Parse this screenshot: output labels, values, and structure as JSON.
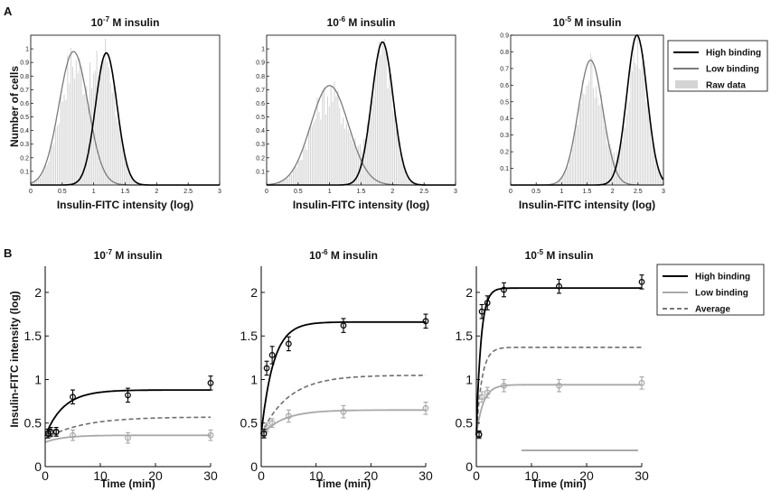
{
  "panels": {
    "a": "A",
    "b": "B"
  },
  "chart_data": [
    {
      "id": "A1",
      "type": "histogram",
      "title_prefix": "10",
      "title_exp": "-7",
      "title_suffix": " M insulin",
      "xlabel": "Insulin-FITC intensity  (log)",
      "ylabel": "Number of cells",
      "xlim": [
        0,
        3
      ],
      "ylim": [
        0,
        1.1
      ],
      "xticks": [
        0,
        0.5,
        1,
        1.5,
        2,
        2.5,
        3
      ],
      "xtick_labels": [
        "0",
        "0.5",
        "1",
        "1.5",
        "2",
        "2.5",
        "3"
      ],
      "yticks": [
        0.1,
        0.2,
        0.3,
        0.4,
        0.5,
        0.6,
        0.7,
        0.8,
        0.9,
        1
      ],
      "ytick_labels": [
        "0.1",
        "0.2",
        "0.3",
        "0.4",
        "0.5",
        "0.6",
        "0.7",
        "0.8",
        "0.9",
        "1"
      ],
      "high": {
        "mu": 1.2,
        "sigma": 0.17,
        "amp": 0.97
      },
      "low": {
        "mu": 0.68,
        "sigma": 0.23,
        "amp": 0.98
      }
    },
    {
      "id": "A2",
      "type": "histogram",
      "title_prefix": "10",
      "title_exp": "-6",
      "title_suffix": " M insulin",
      "xlabel": "Insulin-FITC intensity  (log)",
      "ylabel": "",
      "xlim": [
        0,
        3
      ],
      "ylim": [
        0,
        1.1
      ],
      "xticks": [
        0,
        0.5,
        1,
        1.5,
        2,
        2.5,
        3
      ],
      "xtick_labels": [
        "0",
        "0.5",
        "1",
        "1.5",
        "2",
        "2.5",
        "3"
      ],
      "yticks": [
        0.1,
        0.2,
        0.3,
        0.4,
        0.5,
        0.6,
        0.7,
        0.8,
        0.9,
        1
      ],
      "ytick_labels": [
        "0.1",
        "0.2",
        "0.3",
        "0.4",
        "0.5",
        "0.6",
        "0.7",
        "0.8",
        "0.9",
        "1"
      ],
      "high": {
        "mu": 1.84,
        "sigma": 0.17,
        "amp": 1.05
      },
      "low": {
        "mu": 1.0,
        "sigma": 0.3,
        "amp": 0.73
      }
    },
    {
      "id": "A3",
      "type": "histogram",
      "title_prefix": "10",
      "title_exp": "-5",
      "title_suffix": " M  insulin",
      "xlabel": "Insulin-FITC intensity  (log)",
      "ylabel": "",
      "xlim": [
        0,
        3
      ],
      "ylim": [
        0,
        0.9
      ],
      "xticks": [
        0,
        0.5,
        1,
        1.5,
        2,
        2.5,
        3
      ],
      "xtick_labels": [
        "0",
        "0.5",
        "1",
        "1.5",
        "2",
        "2.5",
        "3"
      ],
      "yticks": [
        0.1,
        0.2,
        0.3,
        0.4,
        0.5,
        0.6,
        0.7,
        0.8,
        0.9
      ],
      "ytick_labels": [
        "0.1",
        "0.2",
        "0.3",
        "0.4",
        "0.5",
        "0.6",
        "0.7",
        "0.8",
        "0.9"
      ],
      "high": {
        "mu": 2.48,
        "sigma": 0.2,
        "amp": 0.9
      },
      "low": {
        "mu": 1.57,
        "sigma": 0.24,
        "amp": 0.75
      }
    },
    {
      "id": "B1",
      "type": "line",
      "title_prefix": "10",
      "title_exp": "-7",
      "title_suffix": " M insulin",
      "xlabel": "Time  (min)",
      "ylabel": "Insulin-FITC intensity (log)",
      "xlim": [
        0,
        30
      ],
      "ylim": [
        0,
        2.3
      ],
      "xticks": [
        0,
        10,
        20,
        30
      ],
      "xtick_labels": [
        "0",
        "10",
        "20",
        "30"
      ],
      "yticks": [
        0,
        0.5,
        1,
        1.5,
        2
      ],
      "ytick_labels": [
        "0",
        "0.5",
        "1",
        "1.5",
        "2"
      ],
      "high": {
        "t": [
          0.5,
          1,
          2,
          5,
          15,
          30
        ],
        "y": [
          0.38,
          0.4,
          0.4,
          0.8,
          0.82,
          0.96
        ],
        "err": [
          0.05,
          0.05,
          0.05,
          0.08,
          0.08,
          0.08
        ],
        "fit_y0": 0.35,
        "fit_ymax": 0.88,
        "fit_k": 0.3
      },
      "low": {
        "t": [
          0.5,
          1,
          2,
          5,
          15,
          30
        ],
        "y": [
          0.37,
          0.38,
          0.39,
          0.36,
          0.33,
          0.36
        ],
        "err": [
          0.04,
          0.04,
          0.04,
          0.06,
          0.06,
          0.06
        ],
        "fit_y0": 0.28,
        "fit_ymax": 0.36,
        "fit_k": 0.3
      },
      "average": {
        "fit_y0": 0.32,
        "fit_ymax": 0.57,
        "fit_k": 0.15
      }
    },
    {
      "id": "B2",
      "type": "line",
      "title_prefix": "10",
      "title_exp": "-6",
      "title_suffix": " M insulin",
      "xlabel": "Time  (min)",
      "ylabel": "",
      "xlim": [
        0,
        30
      ],
      "ylim": [
        0,
        2.3
      ],
      "xticks": [
        0,
        10,
        20,
        30
      ],
      "xtick_labels": [
        "0",
        "10",
        "20",
        "30"
      ],
      "yticks": [
        0,
        0.5,
        1,
        1.5,
        2
      ],
      "ytick_labels": [
        "0",
        "0.5",
        "1",
        "1.5",
        "2"
      ],
      "high": {
        "t": [
          0.5,
          1,
          2,
          5,
          15,
          30
        ],
        "y": [
          0.38,
          1.13,
          1.28,
          1.41,
          1.62,
          1.67
        ],
        "err": [
          0.05,
          0.08,
          0.1,
          0.08,
          0.08,
          0.08
        ],
        "fit_y0": 0.37,
        "fit_ymax": 1.66,
        "fit_k": 0.45
      },
      "low": {
        "t": [
          0.5,
          1,
          2,
          5,
          15,
          30
        ],
        "y": [
          0.37,
          0.45,
          0.5,
          0.58,
          0.63,
          0.67
        ],
        "err": [
          0.04,
          0.05,
          0.05,
          0.07,
          0.07,
          0.07
        ],
        "fit_y0": 0.36,
        "fit_ymax": 0.65,
        "fit_k": 0.25
      },
      "average": {
        "fit_y0": 0.37,
        "fit_ymax": 1.05,
        "fit_k": 0.2
      }
    },
    {
      "id": "B3",
      "type": "line",
      "title_prefix": "10",
      "title_exp": "-5",
      "title_suffix": " M  insulin",
      "xlabel": "Time  (min)",
      "ylabel": "",
      "xlim": [
        0,
        30
      ],
      "ylim": [
        0,
        2.3
      ],
      "xticks": [
        0,
        10,
        20,
        30
      ],
      "xtick_labels": [
        "0",
        "10",
        "20",
        "30"
      ],
      "yticks": [
        0,
        0.5,
        1,
        1.5,
        2
      ],
      "ytick_labels": [
        "0",
        "0.5",
        "1",
        "1.5",
        "2"
      ],
      "high": {
        "t": [
          0.5,
          1,
          2,
          5,
          15,
          30
        ],
        "y": [
          0.37,
          1.78,
          1.88,
          2.03,
          2.07,
          2.12
        ],
        "err": [
          0.04,
          0.08,
          0.08,
          0.08,
          0.08,
          0.08
        ],
        "fit_y0": 0.36,
        "fit_ymax": 2.05,
        "fit_k": 1.2
      },
      "low": {
        "t": [
          0.5,
          1,
          2,
          5,
          15,
          30
        ],
        "y": [
          0.36,
          0.8,
          0.85,
          0.93,
          0.93,
          0.96
        ],
        "err": [
          0.04,
          0.06,
          0.06,
          0.07,
          0.07,
          0.07
        ],
        "fit_y0": 0.36,
        "fit_ymax": 0.94,
        "fit_k": 0.8
      },
      "average": {
        "fit_y0": 0.36,
        "fit_ymax": 1.37,
        "fit_k": 1.0
      }
    }
  ],
  "legend_a": [
    {
      "label": "High binding",
      "color": "#000000",
      "kind": "line"
    },
    {
      "label": "Low binding",
      "color": "#7a7a7a",
      "kind": "line"
    },
    {
      "label": "Raw data",
      "color": "#d4d4d4",
      "kind": "patch"
    }
  ],
  "legend_b": [
    {
      "label": "High binding",
      "color": "#000000",
      "kind": "line"
    },
    {
      "label": "Low binding",
      "color": "#a8a8a8",
      "kind": "line"
    },
    {
      "label": "Average",
      "color": "#777777",
      "kind": "dash"
    }
  ],
  "colors": {
    "high": "#000000",
    "lowA": "#7a7a7a",
    "lowB": "#a8a8a8",
    "avg": "#6e6e6e",
    "raw": "#d4d4d4"
  }
}
